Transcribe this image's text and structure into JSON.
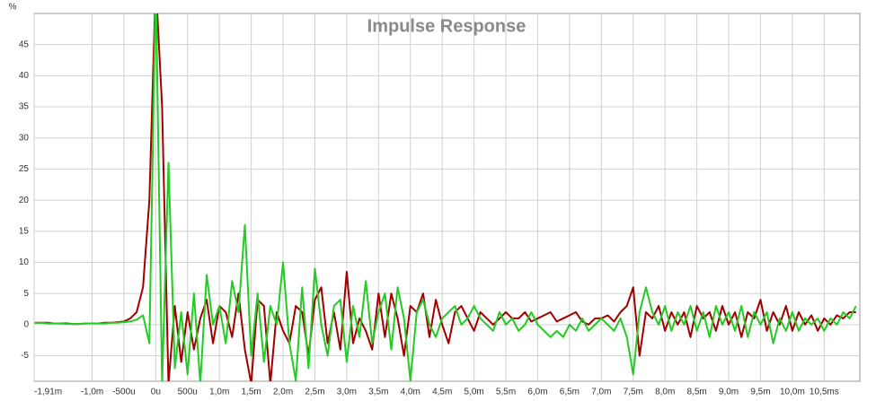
{
  "chart_data": {
    "type": "line",
    "title": "Impulse Response",
    "y_label": "%",
    "xlim": [
      -1.91,
      11.06
    ],
    "ylim": [
      -9.1,
      50
    ],
    "xticks": [
      {
        "value": -1.91,
        "label": "-1,91m"
      },
      {
        "value": -1.0,
        "label": "-1,0m"
      },
      {
        "value": -0.5,
        "label": "-500u"
      },
      {
        "value": 0,
        "label": "0u"
      },
      {
        "value": 0.5,
        "label": "500u"
      },
      {
        "value": 1.0,
        "label": "1,0m"
      },
      {
        "value": 1.5,
        "label": "1,5m"
      },
      {
        "value": 2.0,
        "label": "2,0m"
      },
      {
        "value": 2.5,
        "label": "2,5m"
      },
      {
        "value": 3.0,
        "label": "3,0m"
      },
      {
        "value": 3.5,
        "label": "3,5m"
      },
      {
        "value": 4.0,
        "label": "4,0m"
      },
      {
        "value": 4.5,
        "label": "4,5m"
      },
      {
        "value": 5.0,
        "label": "5,0m"
      },
      {
        "value": 5.5,
        "label": "5,5m"
      },
      {
        "value": 6.0,
        "label": "6,0m"
      },
      {
        "value": 6.5,
        "label": "6,5m"
      },
      {
        "value": 7.0,
        "label": "7,0m"
      },
      {
        "value": 7.5,
        "label": "7,5m"
      },
      {
        "value": 8.0,
        "label": "8,0m"
      },
      {
        "value": 8.5,
        "label": "8,5m"
      },
      {
        "value": 9.0,
        "label": "9,0m"
      },
      {
        "value": 9.5,
        "label": "9,5m"
      },
      {
        "value": 10.0,
        "label": "10,0m"
      },
      {
        "value": 10.5,
        "label": "10,5ms"
      }
    ],
    "yticks": [
      -5,
      0,
      5,
      10,
      15,
      20,
      25,
      30,
      35,
      40,
      45
    ],
    "grid": true,
    "x": [
      -1.9,
      -1.8,
      -1.7,
      -1.6,
      -1.5,
      -1.4,
      -1.3,
      -1.2,
      -1.1,
      -1.0,
      -0.9,
      -0.8,
      -0.7,
      -0.6,
      -0.5,
      -0.4,
      -0.3,
      -0.2,
      -0.1,
      0.0,
      0.1,
      0.2,
      0.3,
      0.4,
      0.5,
      0.6,
      0.7,
      0.8,
      0.9,
      1.0,
      1.1,
      1.2,
      1.3,
      1.4,
      1.5,
      1.6,
      1.7,
      1.8,
      1.9,
      2.0,
      2.1,
      2.2,
      2.3,
      2.4,
      2.5,
      2.6,
      2.7,
      2.8,
      2.9,
      3.0,
      3.1,
      3.2,
      3.3,
      3.4,
      3.5,
      3.6,
      3.7,
      3.8,
      3.9,
      4.0,
      4.1,
      4.2,
      4.3,
      4.4,
      4.5,
      4.6,
      4.7,
      4.8,
      4.9,
      5.0,
      5.1,
      5.2,
      5.3,
      5.4,
      5.5,
      5.6,
      5.7,
      5.8,
      5.9,
      6.0,
      6.1,
      6.2,
      6.3,
      6.4,
      6.5,
      6.6,
      6.7,
      6.8,
      6.9,
      7.0,
      7.1,
      7.2,
      7.3,
      7.4,
      7.5,
      7.6,
      7.7,
      7.8,
      7.9,
      8.0,
      8.1,
      8.2,
      8.3,
      8.4,
      8.5,
      8.6,
      8.7,
      8.8,
      8.9,
      9.0,
      9.1,
      9.2,
      9.3,
      9.4,
      9.5,
      9.6,
      9.7,
      9.8,
      9.9,
      10.0,
      10.1,
      10.2,
      10.3,
      10.4,
      10.5,
      10.6,
      10.7,
      10.8,
      10.9,
      11.0
    ],
    "series": [
      {
        "color": "#a00000",
        "values": [
          0.3,
          0.3,
          0.3,
          0.2,
          0.2,
          0.2,
          0.1,
          0.1,
          0.2,
          0.2,
          0.2,
          0.3,
          0.3,
          0.4,
          0.5,
          1.0,
          2.0,
          6.0,
          20,
          55,
          35,
          -9.5,
          3,
          -6,
          2,
          -4,
          1,
          4,
          -3,
          3,
          2,
          -2,
          5,
          -4,
          -9.5,
          4,
          3,
          -9.5,
          2,
          -1,
          -3,
          3,
          2,
          -5,
          4,
          6,
          -3,
          2,
          -4,
          8.5,
          -3,
          1,
          -1,
          -4,
          5,
          -2,
          5,
          1,
          -5,
          3,
          2,
          5,
          -2,
          4,
          0,
          -3,
          2,
          3,
          1,
          -1,
          2,
          1,
          0,
          1,
          2,
          1,
          1,
          2,
          0.5,
          1,
          1.5,
          2,
          0.5,
          1,
          1.5,
          2,
          0.5,
          0,
          1,
          1,
          1.5,
          0.5,
          2,
          3,
          6,
          -5,
          2,
          1,
          3,
          -1,
          2,
          0,
          2,
          -2,
          3,
          1,
          2,
          -1,
          3,
          0,
          2,
          -2,
          2,
          1,
          4,
          -1,
          2,
          0,
          3,
          -1,
          2,
          0,
          1.5,
          -1,
          1,
          0,
          1.5,
          1,
          2,
          2
        ]
      },
      {
        "color": "#22cc22",
        "values": [
          0.3,
          0.3,
          0.2,
          0.2,
          0.2,
          0.1,
          0.1,
          0.1,
          0.2,
          0.2,
          0.2,
          0.2,
          0.3,
          0.3,
          0.4,
          0.5,
          0.8,
          1.5,
          -3,
          55,
          -9.5,
          26,
          -7,
          2,
          -8,
          5,
          -9.5,
          8,
          0,
          3,
          -3,
          7,
          2,
          16,
          -5,
          5,
          -6,
          3,
          0,
          10,
          -3,
          -9,
          6,
          -7,
          9,
          0,
          -5,
          3,
          4,
          -6,
          3,
          -2,
          7,
          -3,
          2,
          5,
          -4,
          6,
          1,
          -9,
          2,
          4,
          0,
          -2,
          1,
          2,
          3,
          0,
          1,
          3,
          1,
          0,
          -1,
          2,
          0,
          1,
          -1,
          0,
          2,
          0,
          -1,
          -2,
          -1,
          -2,
          0,
          -1,
          1,
          -1,
          0,
          1,
          0,
          -1,
          1,
          -2,
          -8,
          2,
          6,
          2,
          0,
          3,
          -1,
          2,
          0,
          3,
          -1,
          2,
          -2,
          3,
          0,
          2,
          -1,
          3,
          -2,
          2,
          0,
          2,
          -3,
          1,
          -1,
          2,
          -1,
          1,
          0,
          1,
          -1,
          1,
          0,
          2,
          1,
          3
        ]
      }
    ]
  }
}
